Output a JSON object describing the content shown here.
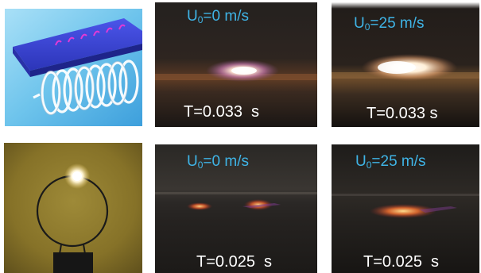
{
  "top_row": {
    "left": {
      "velocity_symbol": "U",
      "velocity_subscript": "0",
      "velocity_value": "=0 m/s",
      "time_label": "T=0.033  s"
    },
    "right": {
      "velocity_symbol": "U",
      "velocity_subscript": "0",
      "velocity_value": "=25 m/s",
      "time_label": "T=0.033 s"
    }
  },
  "bottom_row": {
    "left": {
      "velocity_symbol": "U",
      "velocity_subscript": "0",
      "velocity_value": "=0 m/s",
      "time_label": "T=0.025  s"
    },
    "right": {
      "velocity_symbol": "U",
      "velocity_subscript": "0",
      "velocity_value": "=25 m/s",
      "time_label": "T=0.025  s"
    }
  },
  "colors": {
    "caption_velocity": "#3fb4e6",
    "caption_time": "#ffffff",
    "plate_blue": "#3b45d6",
    "sky_blue": "#6fc6ee",
    "ring_background": "#8a7a2c"
  },
  "icons": {
    "top_left": "coil-under-plate-illustration",
    "bottom_left": "wire-loop-with-glow-photo"
  }
}
